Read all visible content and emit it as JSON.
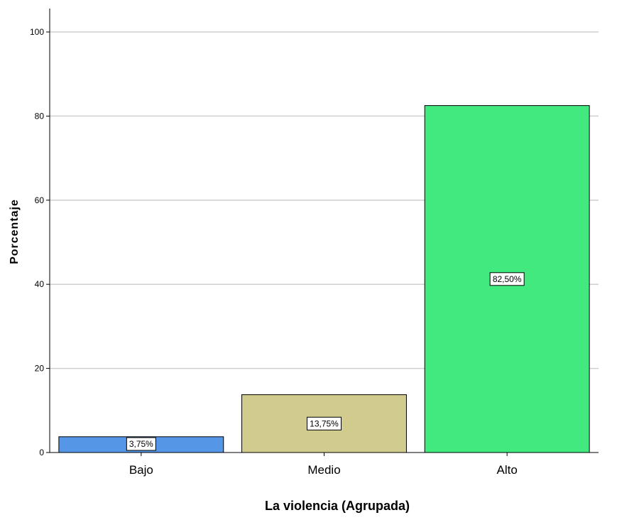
{
  "chart_data": {
    "type": "bar",
    "title": "",
    "xlabel": "La violencia (Agrupada)",
    "ylabel": "Porcentaje",
    "ylim": [
      0,
      100
    ],
    "yticks": [
      0,
      20,
      40,
      60,
      80,
      100
    ],
    "grid": true,
    "categories": [
      "Bajo",
      "Medio",
      "Alto"
    ],
    "values": [
      3.75,
      13.75,
      82.5
    ],
    "data_labels": [
      "3,75%",
      "13,75%",
      "82,50%"
    ],
    "colors": [
      "#5596e6",
      "#d1cb8d",
      "#41e97e"
    ]
  }
}
